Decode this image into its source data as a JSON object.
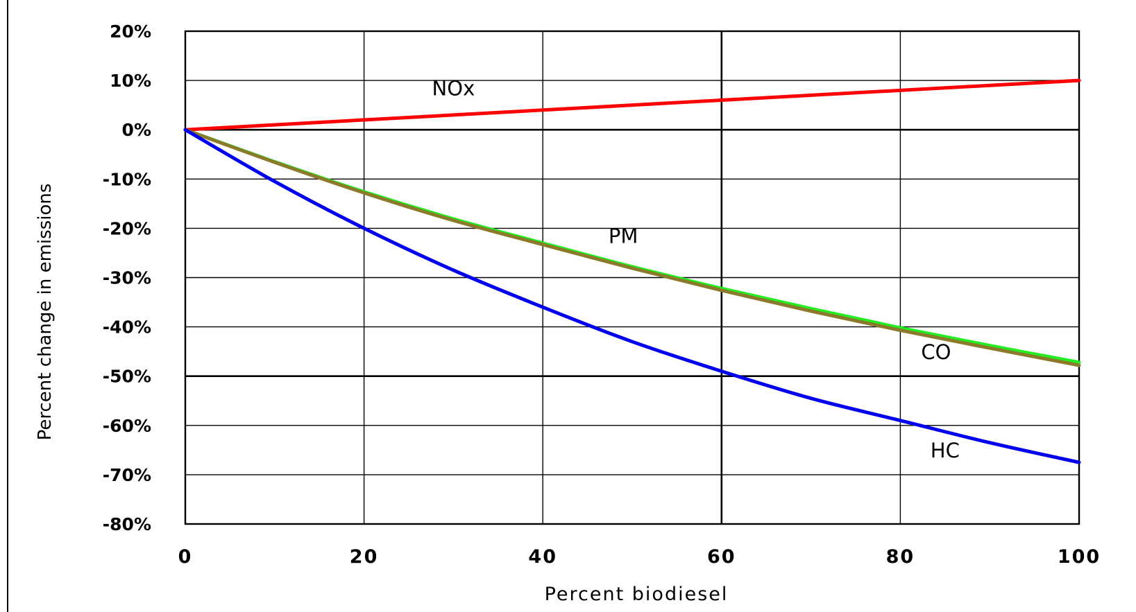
{
  "chart_data": {
    "type": "line",
    "title": "",
    "xlabel": "Percent biodiesel",
    "ylabel": "Percent change in emissions",
    "xlim": [
      0,
      100
    ],
    "ylim": [
      -80,
      20
    ],
    "x_ticks": [
      "0",
      "20",
      "40",
      "60",
      "80",
      "100"
    ],
    "y_ticks": [
      "20%",
      "10%",
      "0%",
      "-10%",
      "-20%",
      "-30%",
      "-40%",
      "-50%",
      "-60%",
      "-70%",
      "-80%"
    ],
    "grid": true,
    "x": [
      0,
      10,
      20,
      30,
      40,
      50,
      60,
      70,
      80,
      90,
      100
    ],
    "series": [
      {
        "name": "NOx",
        "color": "#ff0000",
        "values": [
          0,
          1,
          2,
          3,
          4,
          5,
          6,
          7,
          8,
          9,
          10
        ]
      },
      {
        "name": "PM",
        "color": "#22ee22",
        "values": [
          0,
          -6.5,
          -12.6,
          -18.1,
          -23,
          -27.8,
          -32.2,
          -36.3,
          -40.2,
          -43.8,
          -47.2
        ]
      },
      {
        "name": "CO",
        "color": "#8a7a2a",
        "values": [
          0,
          -6.6,
          -12.8,
          -18.4,
          -23.3,
          -28.1,
          -32.6,
          -36.8,
          -40.7,
          -44.3,
          -47.8
        ]
      },
      {
        "name": "HC",
        "color": "#0000ee",
        "values": [
          0,
          -10.5,
          -20,
          -28.5,
          -36,
          -43,
          -49,
          -54.5,
          -59,
          -63.5,
          -67.5
        ]
      }
    ],
    "labels": [
      {
        "text": "NOx",
        "x": 30,
        "y": 7
      },
      {
        "text": "PM",
        "x": 49,
        "y": -23
      },
      {
        "text": "CO",
        "x": 84,
        "y": -46.5
      },
      {
        "text": "HC",
        "x": 85,
        "y": -66.5
      }
    ]
  }
}
